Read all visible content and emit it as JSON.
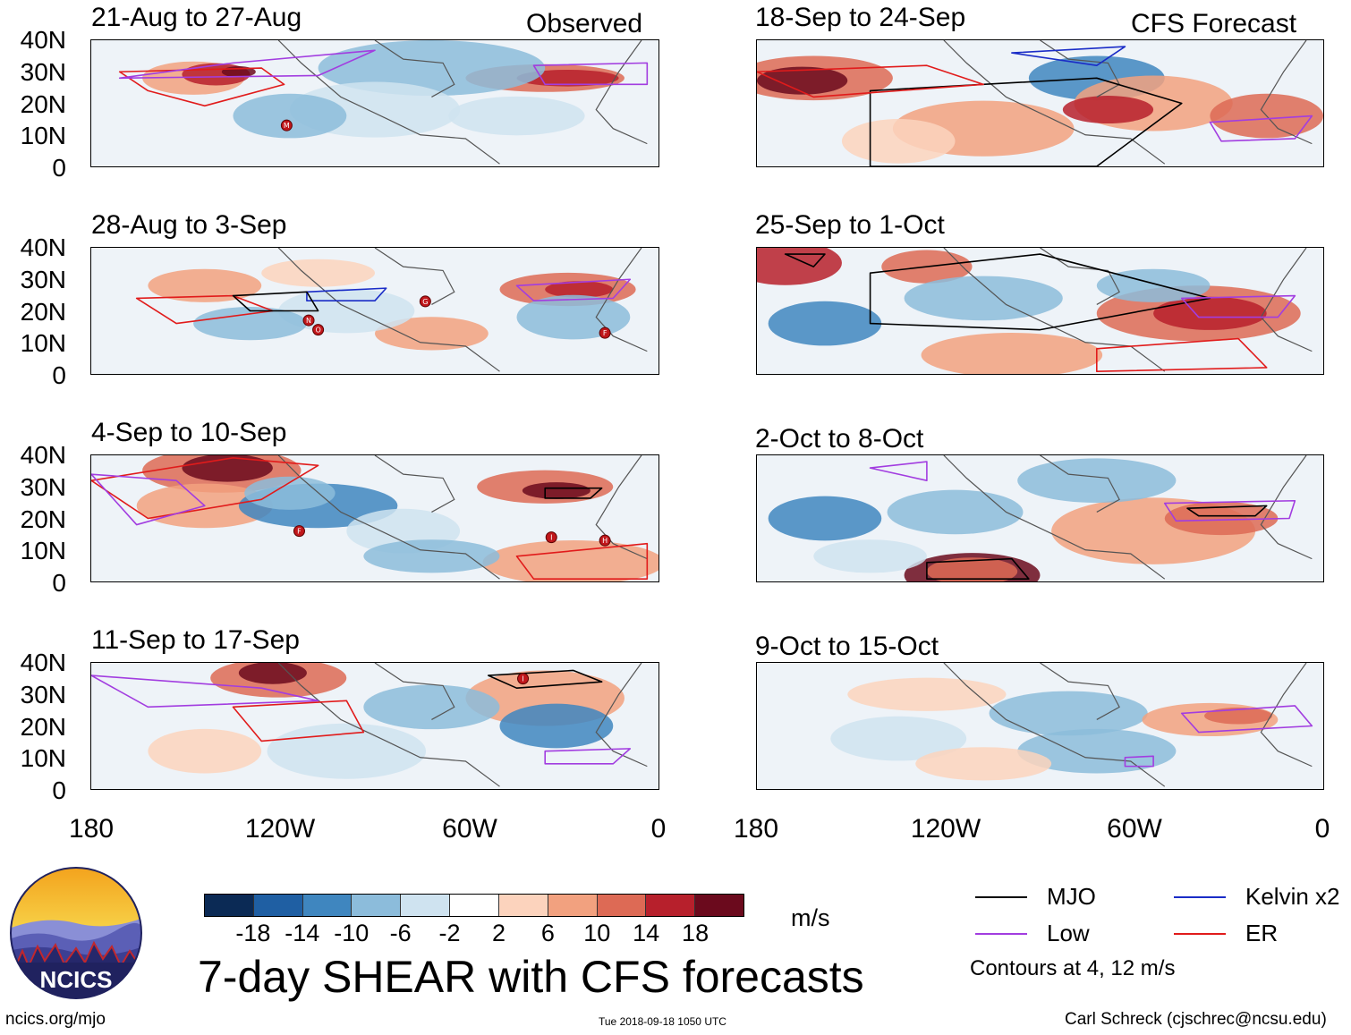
{
  "headers": {
    "observed": "Observed",
    "forecast": "CFS Forecast"
  },
  "panels_observed": [
    {
      "title": "21-Aug to 27-Aug"
    },
    {
      "title": "28-Aug to 3-Sep"
    },
    {
      "title": "4-Sep to 10-Sep"
    },
    {
      "title": "11-Sep to 17-Sep"
    }
  ],
  "panels_forecast": [
    {
      "title": "18-Sep to 24-Sep"
    },
    {
      "title": "25-Sep to 1-Oct"
    },
    {
      "title": "2-Oct to 8-Oct"
    },
    {
      "title": "9-Oct to 15-Oct"
    }
  ],
  "latitude_labels": [
    "40N",
    "30N",
    "20N",
    "10N",
    "0"
  ],
  "longitude_labels": [
    "180",
    "120W",
    "60W",
    "0"
  ],
  "storms": [
    {
      "panel": "obs-1",
      "letter": "M",
      "lon": -118,
      "lat": 13
    },
    {
      "panel": "obs-2",
      "letter": "N",
      "lon": -111,
      "lat": 17
    },
    {
      "panel": "obs-2",
      "letter": "O",
      "lon": -108,
      "lat": 14
    },
    {
      "panel": "obs-2",
      "letter": "G",
      "lon": -74,
      "lat": 23
    },
    {
      "panel": "obs-2",
      "letter": "F",
      "lon": -17,
      "lat": 13
    },
    {
      "panel": "obs-3",
      "letter": "F",
      "lon": -114,
      "lat": 16
    },
    {
      "panel": "obs-3",
      "letter": "I",
      "lon": -34,
      "lat": 14
    },
    {
      "panel": "obs-3",
      "letter": "H",
      "lon": -17,
      "lat": 13
    },
    {
      "panel": "obs-4",
      "letter": "I",
      "lon": -43,
      "lat": 35
    }
  ],
  "colorbar": {
    "ticks": [
      "-18",
      "-14",
      "-10",
      "-6",
      "-2",
      "2",
      "6",
      "10",
      "14",
      "18"
    ],
    "units": "m/s",
    "colors": [
      "#0b2a55",
      "#1f5fa3",
      "#3f86bf",
      "#8cbcdb",
      "#cfe3f0",
      "#ffffff",
      "#fcd3bd",
      "#f2a17f",
      "#dd6a55",
      "#b7202c",
      "#6b0a1d"
    ]
  },
  "title": "7-day SHEAR with CFS forecasts",
  "legend": {
    "items": [
      {
        "label": "MJO",
        "color": "#000000"
      },
      {
        "label": "Kelvin x2",
        "color": "#1a2cc7"
      },
      {
        "label": "Low",
        "color": "#a23de0"
      },
      {
        "label": "ER",
        "color": "#e11b1b"
      }
    ],
    "note": "Contours at 4, 12 m/s"
  },
  "logo_text": "NCICS",
  "footer": {
    "url": "ncics.org/mjo",
    "timestamp": "Tue 2018-09-18 1050 UTC",
    "credit": "Carl Schreck (cjschrec@ncsu.edu)"
  }
}
